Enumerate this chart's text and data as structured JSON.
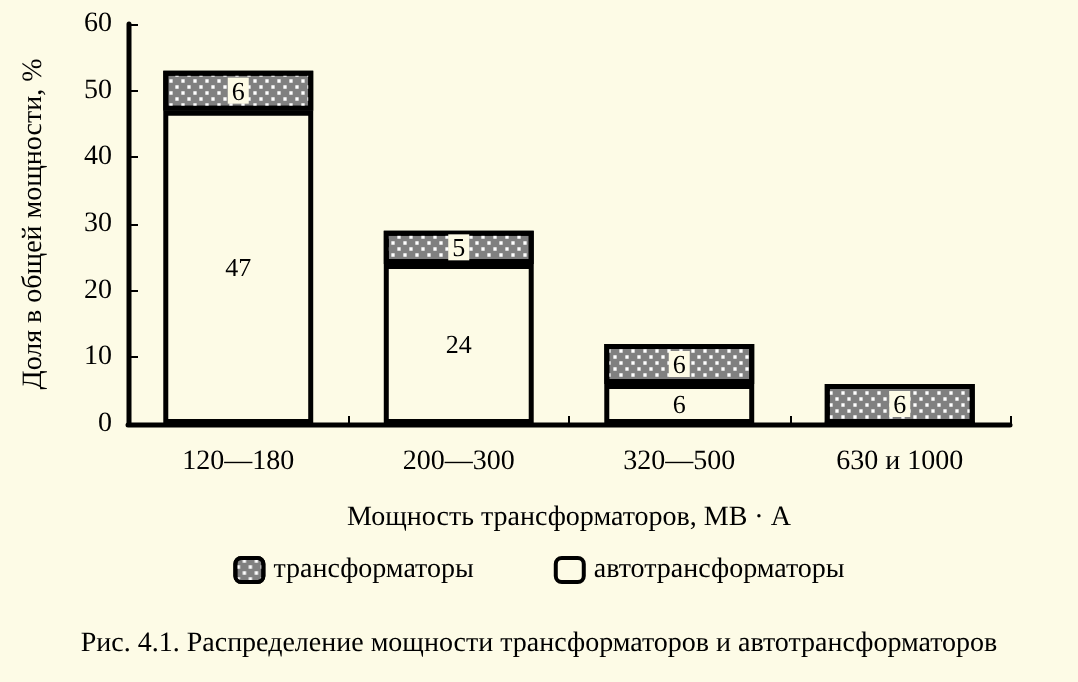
{
  "chart_data": {
    "type": "bar",
    "stacked": true,
    "xlabel": "Мощность трансформаторов, МВ · А",
    "ylabel": "Доля в общей мощности, %",
    "categories": [
      "120—180",
      "200—300",
      "320—500",
      "630 и 1000"
    ],
    "series": [
      {
        "name": "автотрансформаторы",
        "color": "#fdfbe6",
        "values": [
          47,
          24,
          6,
          0
        ],
        "value_labels": [
          "47",
          "24",
          "6",
          null
        ]
      },
      {
        "name": "трансформаторы",
        "color": "#808080",
        "values": [
          6,
          5,
          6,
          6
        ],
        "value_labels": [
          "6",
          "5",
          "6",
          "6"
        ]
      }
    ],
    "ylim": [
      0,
      60
    ],
    "yticks": [
      0,
      10,
      20,
      30,
      40,
      50,
      60
    ],
    "grid": false,
    "legend": "bottom",
    "annotations": [
      "Рис. 4.1. Распределение мощности трансформаторов и автотрансформаторов"
    ]
  }
}
